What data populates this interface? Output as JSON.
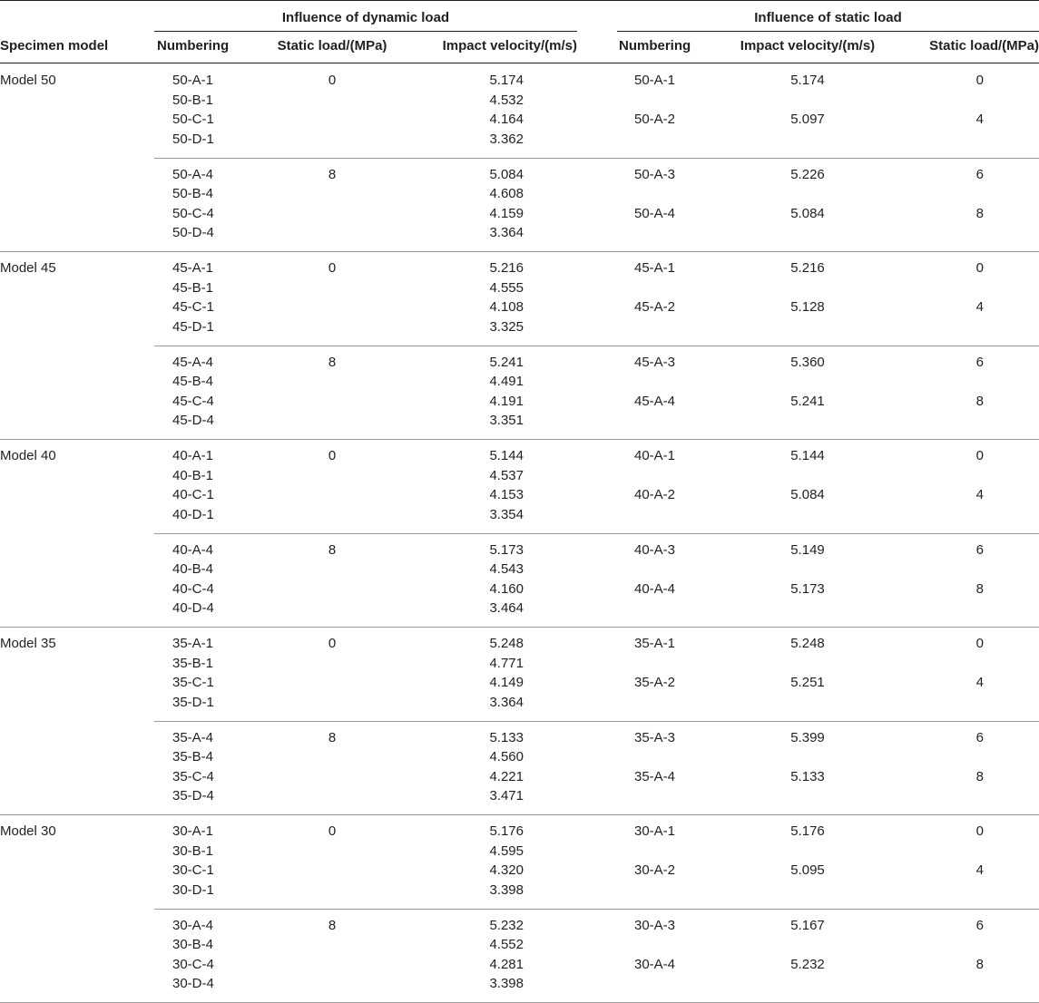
{
  "header": {
    "group_dynamic": "Influence of dynamic load",
    "group_static": "Influence of static load",
    "specimen_model": "Specimen model",
    "dyn_numbering": "Numbering",
    "dyn_static_load": "Static load/(MPa)",
    "dyn_impact_velocity": "Impact velocity/(m/s)",
    "sta_numbering": "Numbering",
    "sta_impact_velocity": "Impact velocity/(m/s)",
    "sta_static_load": "Static load/(MPa)"
  },
  "models": [
    {
      "name": "Model 50",
      "groups": [
        {
          "static_load": "0",
          "dynamic": [
            {
              "id": "50-A-1",
              "velocity": "5.174"
            },
            {
              "id": "50-B-1",
              "velocity": "4.532"
            },
            {
              "id": "50-C-1",
              "velocity": "4.164"
            },
            {
              "id": "50-D-1",
              "velocity": "3.362"
            }
          ],
          "static": [
            {
              "id": "50-A-1",
              "velocity": "5.174",
              "load": "0"
            },
            {
              "id": "50-A-2",
              "velocity": "5.097",
              "load": "4"
            }
          ]
        },
        {
          "static_load": "8",
          "dynamic": [
            {
              "id": "50-A-4",
              "velocity": "5.084"
            },
            {
              "id": "50-B-4",
              "velocity": "4.608"
            },
            {
              "id": "50-C-4",
              "velocity": "4.159"
            },
            {
              "id": "50-D-4",
              "velocity": "3.364"
            }
          ],
          "static": [
            {
              "id": "50-A-3",
              "velocity": "5.226",
              "load": "6"
            },
            {
              "id": "50-A-4",
              "velocity": "5.084",
              "load": "8"
            }
          ]
        }
      ]
    },
    {
      "name": "Model 45",
      "groups": [
        {
          "static_load": "0",
          "dynamic": [
            {
              "id": "45-A-1",
              "velocity": "5.216"
            },
            {
              "id": "45-B-1",
              "velocity": "4.555"
            },
            {
              "id": "45-C-1",
              "velocity": "4.108"
            },
            {
              "id": "45-D-1",
              "velocity": "3.325"
            }
          ],
          "static": [
            {
              "id": "45-A-1",
              "velocity": "5.216",
              "load": "0"
            },
            {
              "id": "45-A-2",
              "velocity": "5.128",
              "load": "4"
            }
          ]
        },
        {
          "static_load": "8",
          "dynamic": [
            {
              "id": "45-A-4",
              "velocity": "5.241"
            },
            {
              "id": "45-B-4",
              "velocity": "4.491"
            },
            {
              "id": "45-C-4",
              "velocity": "4.191"
            },
            {
              "id": "45-D-4",
              "velocity": "3.351"
            }
          ],
          "static": [
            {
              "id": "45-A-3",
              "velocity": "5.360",
              "load": "6"
            },
            {
              "id": "45-A-4",
              "velocity": "5.241",
              "load": "8"
            }
          ]
        }
      ]
    },
    {
      "name": "Model 40",
      "groups": [
        {
          "static_load": "0",
          "dynamic": [
            {
              "id": "40-A-1",
              "velocity": "5.144"
            },
            {
              "id": "40-B-1",
              "velocity": "4.537"
            },
            {
              "id": "40-C-1",
              "velocity": "4.153"
            },
            {
              "id": "40-D-1",
              "velocity": "3.354"
            }
          ],
          "static": [
            {
              "id": "40-A-1",
              "velocity": "5.144",
              "load": "0"
            },
            {
              "id": "40-A-2",
              "velocity": "5.084",
              "load": "4"
            }
          ]
        },
        {
          "static_load": "8",
          "dynamic": [
            {
              "id": "40-A-4",
              "velocity": "5.173"
            },
            {
              "id": "40-B-4",
              "velocity": "4.543"
            },
            {
              "id": "40-C-4",
              "velocity": "4.160"
            },
            {
              "id": "40-D-4",
              "velocity": "3.464"
            }
          ],
          "static": [
            {
              "id": "40-A-3",
              "velocity": "5.149",
              "load": "6"
            },
            {
              "id": "40-A-4",
              "velocity": "5.173",
              "load": "8"
            }
          ]
        }
      ]
    },
    {
      "name": "Model 35",
      "groups": [
        {
          "static_load": "0",
          "dynamic": [
            {
              "id": "35-A-1",
              "velocity": "5.248"
            },
            {
              "id": "35-B-1",
              "velocity": "4.771"
            },
            {
              "id": "35-C-1",
              "velocity": "4.149"
            },
            {
              "id": "35-D-1",
              "velocity": "3.364"
            }
          ],
          "static": [
            {
              "id": "35-A-1",
              "velocity": "5.248",
              "load": "0"
            },
            {
              "id": "35-A-2",
              "velocity": "5.251",
              "load": "4"
            }
          ]
        },
        {
          "static_load": "8",
          "dynamic": [
            {
              "id": "35-A-4",
              "velocity": "5.133"
            },
            {
              "id": "35-B-4",
              "velocity": "4.560"
            },
            {
              "id": "35-C-4",
              "velocity": "4.221"
            },
            {
              "id": "35-D-4",
              "velocity": "3.471"
            }
          ],
          "static": [
            {
              "id": "35-A-3",
              "velocity": "5.399",
              "load": "6"
            },
            {
              "id": "35-A-4",
              "velocity": "5.133",
              "load": "8"
            }
          ]
        }
      ]
    },
    {
      "name": "Model 30",
      "groups": [
        {
          "static_load": "0",
          "dynamic": [
            {
              "id": "30-A-1",
              "velocity": "5.176"
            },
            {
              "id": "30-B-1",
              "velocity": "4.595"
            },
            {
              "id": "30-C-1",
              "velocity": "4.320"
            },
            {
              "id": "30-D-1",
              "velocity": "3.398"
            }
          ],
          "static": [
            {
              "id": "30-A-1",
              "velocity": "5.176",
              "load": "0"
            },
            {
              "id": "30-A-2",
              "velocity": "5.095",
              "load": "4"
            }
          ]
        },
        {
          "static_load": "8",
          "dynamic": [
            {
              "id": "30-A-4",
              "velocity": "5.232"
            },
            {
              "id": "30-B-4",
              "velocity": "4.552"
            },
            {
              "id": "30-C-4",
              "velocity": "4.281"
            },
            {
              "id": "30-D-4",
              "velocity": "3.398"
            }
          ],
          "static": [
            {
              "id": "30-A-3",
              "velocity": "5.167",
              "load": "6"
            },
            {
              "id": "30-A-4",
              "velocity": "5.232",
              "load": "8"
            }
          ]
        }
      ]
    }
  ]
}
